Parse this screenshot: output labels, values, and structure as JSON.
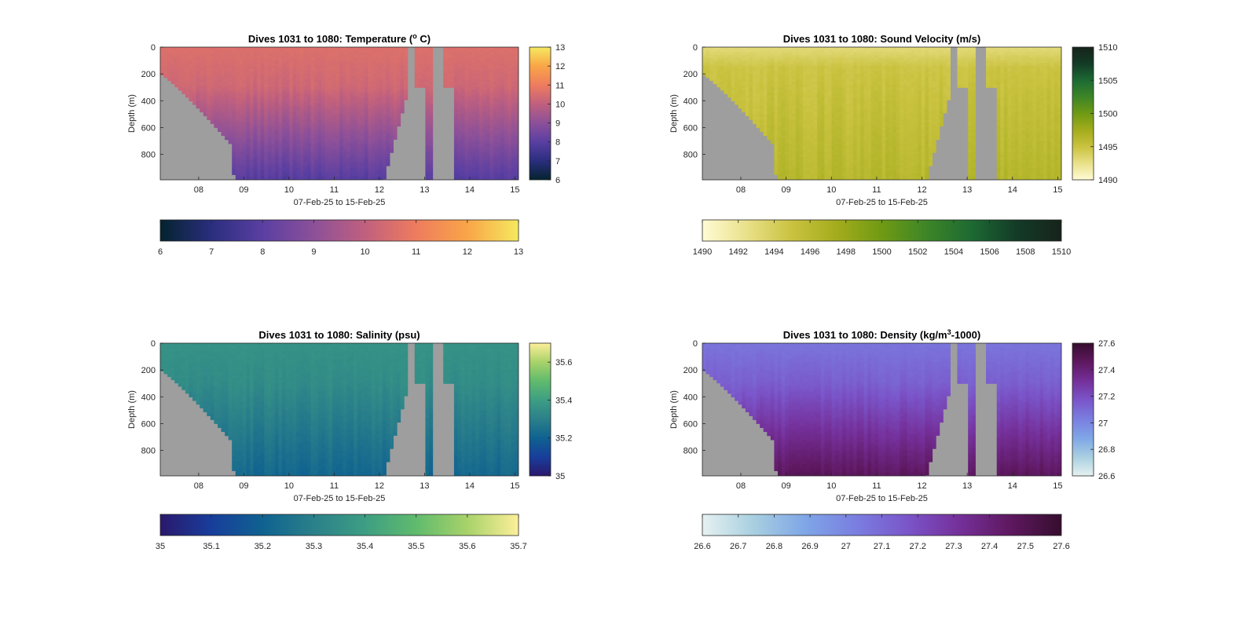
{
  "figure": {
    "background": "#ffffff",
    "land_color": "#9e9e9e"
  },
  "chart_data": [
    {
      "type": "heatmap",
      "variable": "temperature",
      "title_main": "Dives 1031 to 1080: Temperature (",
      "title_sup": "o",
      "title_tail": " C)",
      "xlabel": "07-Feb-25 to 15-Feb-25",
      "ylabel": "Depth (m)",
      "x_ticks": [
        "08",
        "09",
        "10",
        "11",
        "12",
        "13",
        "14",
        "15"
      ],
      "xlim_days": [
        7.15,
        15.08
      ],
      "y_ticks": [
        "0",
        "200",
        "400",
        "600",
        "800"
      ],
      "ylim": [
        0,
        990
      ],
      "y_reversed": true,
      "clim": [
        6,
        13
      ],
      "colormap": "thermal",
      "colormap_stops": [
        "#04232e",
        "#2a2e7e",
        "#5a3fa2",
        "#8c5099",
        "#c0607e",
        "#ee7c5e",
        "#f9a548",
        "#f5e95f"
      ],
      "side_colorbar_ticks": [
        "13",
        "12",
        "11",
        "10",
        "9",
        "8",
        "7",
        "6"
      ],
      "bottom_colorbar_ticks": [
        "6",
        "7",
        "8",
        "9",
        "10",
        "11",
        "12",
        "13"
      ],
      "profile": {
        "surface": 10.6,
        "mid": 9.8,
        "bottom": 7.9,
        "mix_depth": 300
      }
    },
    {
      "type": "heatmap",
      "variable": "sound_velocity",
      "title_main": "Dives 1031 to 1080: Sound Velocity (m/s)",
      "title_sup": "",
      "title_tail": "",
      "xlabel": "07-Feb-25 to 15-Feb-25",
      "ylabel": "Depth (m)",
      "x_ticks": [
        "08",
        "09",
        "10",
        "11",
        "12",
        "13",
        "14",
        "15"
      ],
      "xlim_days": [
        7.15,
        15.08
      ],
      "y_ticks": [
        "0",
        "200",
        "400",
        "600",
        "800"
      ],
      "ylim": [
        0,
        990
      ],
      "y_reversed": true,
      "clim": [
        1490,
        1510
      ],
      "colormap": "speed",
      "colormap_stops": [
        "#fffbd5",
        "#e9e089",
        "#c9c23f",
        "#a3ac1c",
        "#6f9a14",
        "#3d8527",
        "#1d6a33",
        "#133b27",
        "#17231a"
      ],
      "side_colorbar_ticks": [
        "1510",
        "1505",
        "1500",
        "1495",
        "1490"
      ],
      "bottom_colorbar_ticks": [
        "1490",
        "1492",
        "1494",
        "1496",
        "1498",
        "1500",
        "1502",
        "1504",
        "1506",
        "1508",
        "1510"
      ],
      "profile": {
        "surface": 1493.0,
        "mid": 1497.5,
        "bottom": 1496.2,
        "mix_depth": 150
      }
    },
    {
      "type": "heatmap",
      "variable": "salinity",
      "title_main": "Dives 1031 to 1080: Salinity (psu)",
      "title_sup": "",
      "title_tail": "",
      "xlabel": "07-Feb-25 to 15-Feb-25",
      "ylabel": "Depth (m)",
      "x_ticks": [
        "08",
        "09",
        "10",
        "11",
        "12",
        "13",
        "14",
        "15"
      ],
      "xlim_days": [
        7.15,
        15.08
      ],
      "y_ticks": [
        "0",
        "200",
        "400",
        "600",
        "800"
      ],
      "ylim": [
        0,
        990
      ],
      "y_reversed": true,
      "clim": [
        35,
        35.7
      ],
      "colormap": "haline",
      "colormap_stops": [
        "#2a186c",
        "#183e9b",
        "#0f6290",
        "#2b808a",
        "#3d9e83",
        "#60bb6d",
        "#a8d26a",
        "#fdef9a"
      ],
      "side_colorbar_ticks": [
        "35.6",
        "35.4",
        "35.2",
        "35"
      ],
      "bottom_colorbar_ticks": [
        "35",
        "35.1",
        "35.2",
        "35.3",
        "35.4",
        "35.5",
        "35.6",
        "35.7"
      ],
      "profile": {
        "surface": 35.36,
        "mid": 35.31,
        "bottom": 35.22,
        "mix_depth": 300
      }
    },
    {
      "type": "heatmap",
      "variable": "density",
      "title_main": "Dives 1031 to 1080: Density (kg/m",
      "title_sup": "3",
      "title_tail": "-1000)",
      "xlabel": "07-Feb-25 to 15-Feb-25",
      "ylabel": "Depth (m)",
      "x_ticks": [
        "08",
        "09",
        "10",
        "11",
        "12",
        "13",
        "14",
        "15"
      ],
      "xlim_days": [
        7.15,
        15.08
      ],
      "y_ticks": [
        "0",
        "200",
        "400",
        "600",
        "800"
      ],
      "ylim": [
        0,
        990
      ],
      "y_reversed": true,
      "clim": [
        26.6,
        27.6
      ],
      "colormap": "dense",
      "colormap_stops": [
        "#e6f1f1",
        "#a8cfe0",
        "#7fa6e7",
        "#7a7ee0",
        "#7a55c9",
        "#75309a",
        "#5e1860",
        "#360d2e"
      ],
      "side_colorbar_ticks": [
        "27.6",
        "27.4",
        "27.2",
        "27",
        "26.8",
        "26.6"
      ],
      "bottom_colorbar_ticks": [
        "26.6",
        "26.7",
        "26.8",
        "26.9",
        "27",
        "27.1",
        "27.2",
        "27.3",
        "27.4",
        "27.5",
        "27.6"
      ],
      "profile": {
        "surface": 27.06,
        "mid": 27.25,
        "bottom": 27.47,
        "mix_depth": 300
      }
    }
  ]
}
